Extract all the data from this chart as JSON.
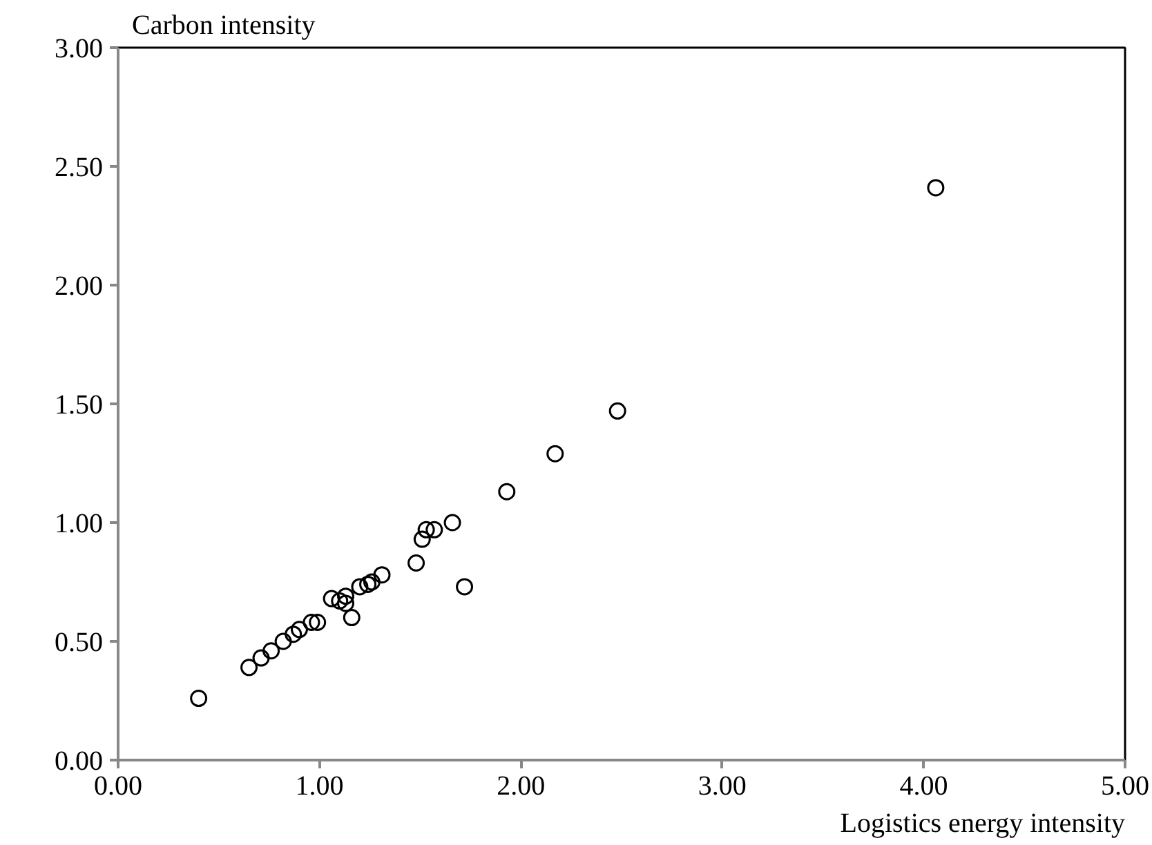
{
  "chart_data": {
    "type": "scatter",
    "xlabel": "Logistics energy intensity",
    "ylabel": "Carbon intensity",
    "x": [
      0.4,
      0.65,
      0.71,
      0.76,
      0.82,
      0.87,
      0.9,
      0.96,
      0.99,
      1.06,
      1.1,
      1.13,
      1.13,
      1.16,
      1.2,
      1.24,
      1.26,
      1.31,
      1.48,
      1.51,
      1.53,
      1.57,
      1.66,
      1.72,
      1.93,
      2.17,
      2.48,
      4.06
    ],
    "series": [
      {
        "color": "#000000",
        "values": [
          0.26,
          0.39,
          0.43,
          0.46,
          0.5,
          0.53,
          0.55,
          0.58,
          0.58,
          0.68,
          0.67,
          0.69,
          0.66,
          0.6,
          0.73,
          0.74,
          0.75,
          0.78,
          0.83,
          0.93,
          0.97,
          0.97,
          1.0,
          0.73,
          1.13,
          1.29,
          1.47,
          2.41
        ]
      }
    ],
    "xlim": [
      0,
      5
    ],
    "ylim": [
      0,
      3
    ],
    "xticks": [
      {
        "value": 0,
        "label": "0.00"
      },
      {
        "value": 1,
        "label": "1.00"
      },
      {
        "value": 2,
        "label": "2.00"
      },
      {
        "value": 3,
        "label": "3.00"
      },
      {
        "value": 4,
        "label": "4.00"
      },
      {
        "value": 5,
        "label": "5.00"
      }
    ],
    "yticks": [
      {
        "value": 0,
        "label": "0.00"
      },
      {
        "value": 0.5,
        "label": "0.50"
      },
      {
        "value": 1,
        "label": "1.00"
      },
      {
        "value": 1.5,
        "label": "1.50"
      },
      {
        "value": 2,
        "label": "2.00"
      },
      {
        "value": 2.5,
        "label": "2.50"
      },
      {
        "value": 3,
        "label": "3.00"
      }
    ],
    "marker": "circle"
  }
}
